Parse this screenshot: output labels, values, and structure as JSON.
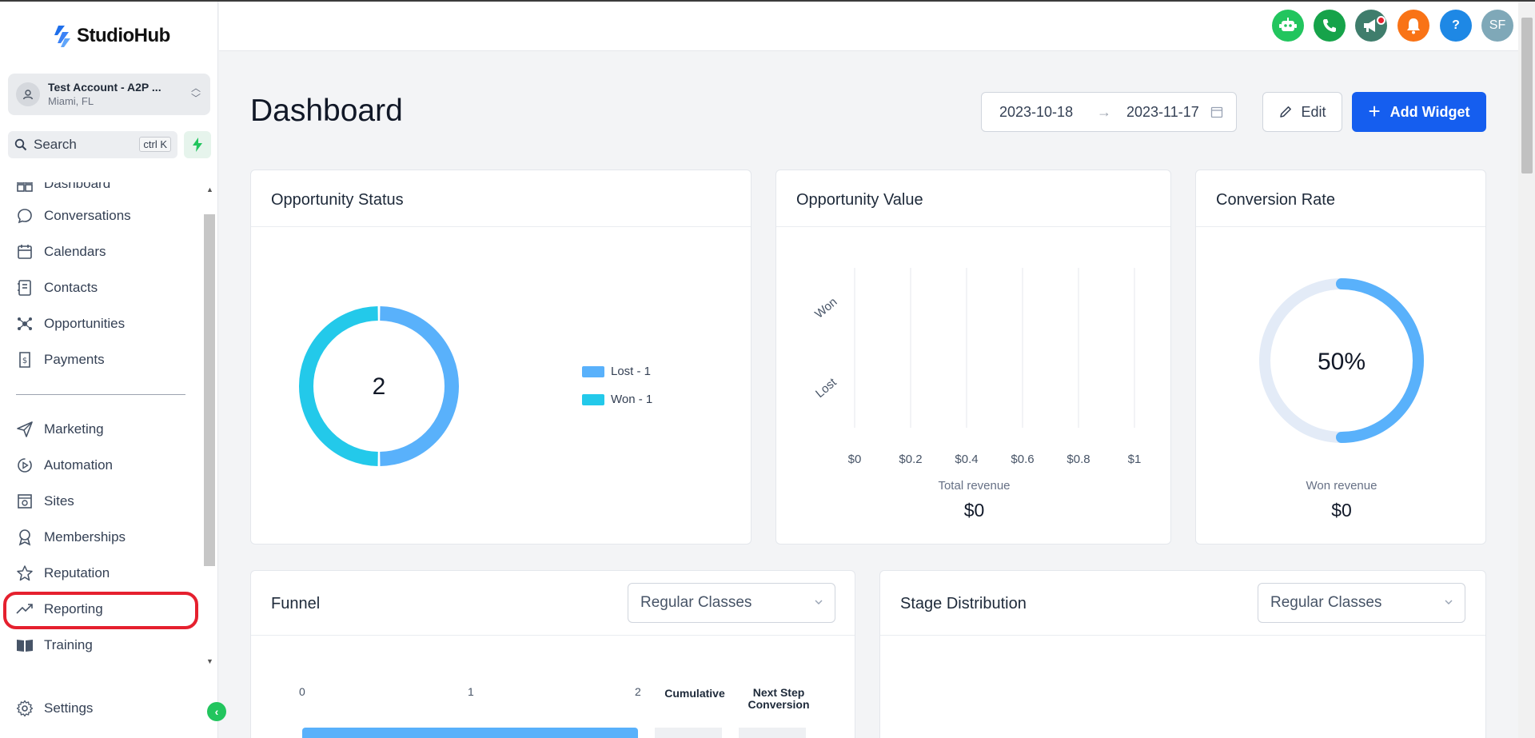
{
  "app": {
    "brand": "StudioHub"
  },
  "account": {
    "name": "Test Account - A2P ...",
    "location": "Miami, FL"
  },
  "search": {
    "placeholder": "Search",
    "shortcut": "ctrl K"
  },
  "sidebar": {
    "partial_item": "Dashboard",
    "items": [
      {
        "label": "Conversations",
        "icon": "chat-bubble-icon"
      },
      {
        "label": "Calendars",
        "icon": "calendar-icon"
      },
      {
        "label": "Contacts",
        "icon": "contacts-icon"
      },
      {
        "label": "Opportunities",
        "icon": "opportunities-icon"
      },
      {
        "label": "Payments",
        "icon": "payments-icon"
      },
      {
        "label": "Marketing",
        "icon": "send-icon"
      },
      {
        "label": "Automation",
        "icon": "automation-icon"
      },
      {
        "label": "Sites",
        "icon": "sites-icon"
      },
      {
        "label": "Memberships",
        "icon": "award-icon"
      },
      {
        "label": "Reputation",
        "icon": "star-icon"
      },
      {
        "label": "Reporting",
        "icon": "trend-icon"
      },
      {
        "label": "Training",
        "icon": "book-icon"
      }
    ],
    "settings_label": "Settings"
  },
  "header": {
    "avatar_initials": "SF",
    "help_label": "?",
    "colors": {
      "bot": "#22c55e",
      "phone": "#16a34a",
      "megaphone": "#3f7d6c",
      "bell": "#f97316",
      "help": "#1e88e5",
      "avatar": "#7fa8b8"
    }
  },
  "page": {
    "title": "Dashboard",
    "date_start": "2023-10-18",
    "date_end": "2023-11-17",
    "edit_label": "Edit",
    "add_widget_label": "Add Widget"
  },
  "widgets": {
    "opportunity_status": {
      "title": "Opportunity Status",
      "center_value": "2",
      "legend": [
        "Lost - 1",
        "Won - 1"
      ]
    },
    "opportunity_value": {
      "title": "Opportunity Value",
      "footer_label": "Total revenue",
      "footer_value": "$0"
    },
    "conversion_rate": {
      "title": "Conversion Rate",
      "center_value": "50%",
      "footer_label": "Won revenue",
      "footer_value": "$0"
    },
    "funnel": {
      "title": "Funnel",
      "select_value": "Regular Classes",
      "axis_ticks": [
        "0",
        "1",
        "2"
      ],
      "col_cumulative": "Cumulative",
      "col_next_line1": "Next Step",
      "col_next_line2": "Conversion"
    },
    "stage_distribution": {
      "title": "Stage Distribution",
      "select_value": "Regular Classes"
    }
  },
  "chart_data": [
    {
      "type": "pie",
      "title": "Opportunity Status",
      "categories": [
        "Lost",
        "Won"
      ],
      "values": [
        1,
        1
      ],
      "colors": [
        "#59b1fb",
        "#23c9ea"
      ],
      "legend_position": "right"
    },
    {
      "type": "bar",
      "title": "Opportunity Value",
      "orientation": "horizontal",
      "categories": [
        "Won",
        "Lost"
      ],
      "values": [
        0,
        0
      ],
      "x_ticks": [
        "$0",
        "$0.2",
        "$0.4",
        "$0.6",
        "$0.8",
        "$1"
      ],
      "xlim": [
        0,
        1
      ],
      "grid": true
    },
    {
      "type": "pie",
      "title": "Conversion Rate",
      "values": [
        50,
        50
      ],
      "colors": [
        "#59b1fb",
        "#e3ebf7"
      ]
    }
  ]
}
